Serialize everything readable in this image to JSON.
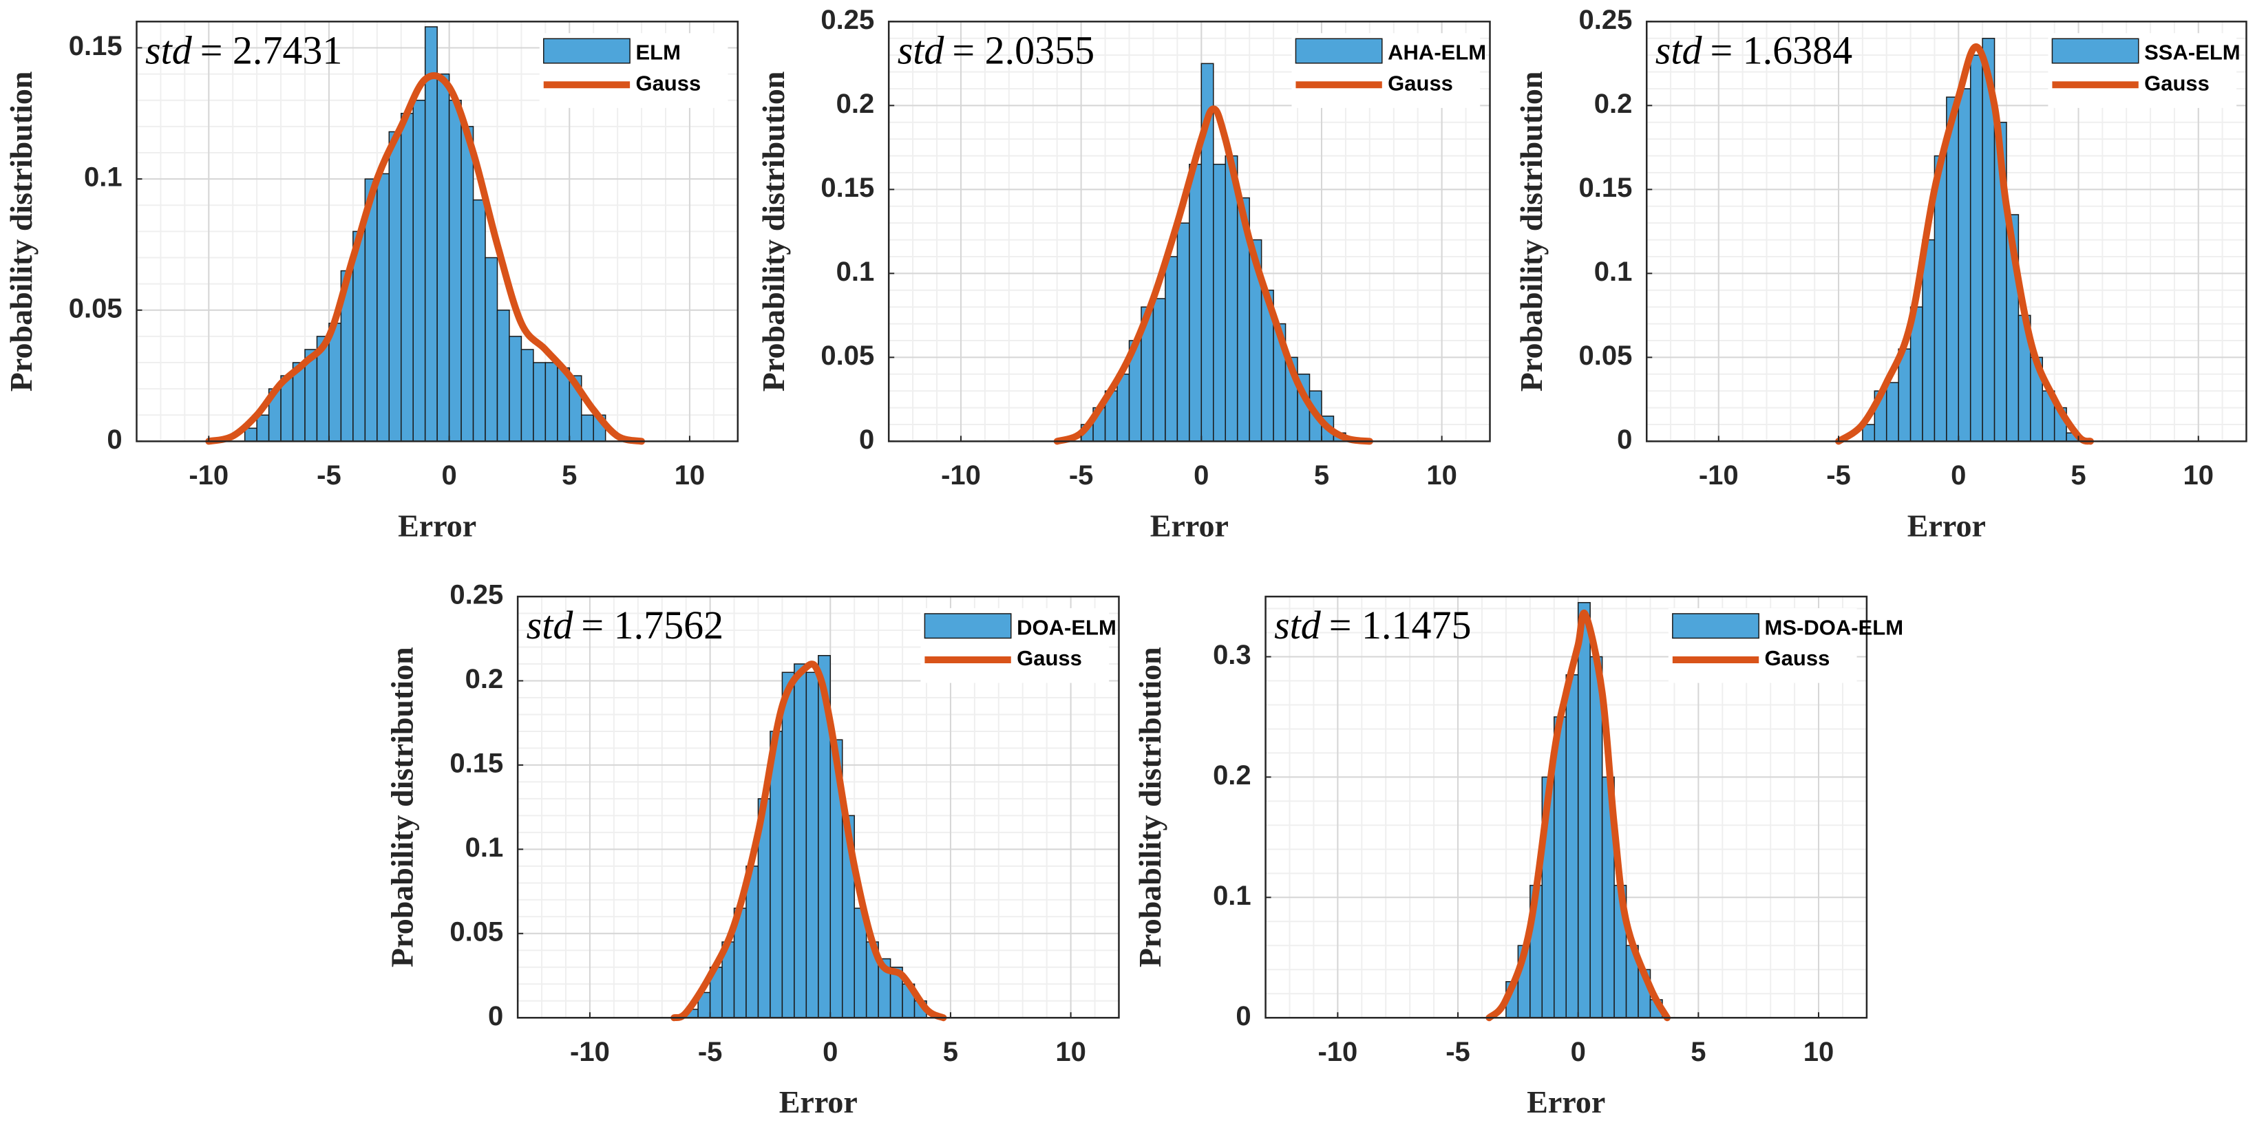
{
  "chart_data": [
    {
      "type": "histogram",
      "xlabel": "Error",
      "ylabel": "Probability distribution",
      "annotation": [
        "std",
        "= 2.7431"
      ],
      "bins": [
        -8.5,
        -8,
        -7.5,
        -7,
        -6.5,
        -6,
        -5.5,
        -5,
        -4.5,
        -4,
        -3.5,
        -3,
        -2.5,
        -2,
        -1.5,
        -1,
        -0.5,
        0,
        0.5,
        1,
        1.5,
        2,
        2.5,
        3,
        3.5,
        4,
        4.5,
        5,
        5.5,
        6,
        6.5
      ],
      "series": [
        {
          "name": "ELM",
          "color": "#4ea5da",
          "values": [
            0.005,
            0.01,
            0.02,
            0.025,
            0.03,
            0.035,
            0.04,
            0.045,
            0.065,
            0.08,
            0.1,
            0.102,
            0.118,
            0.125,
            0.13,
            0.158,
            0.14,
            0.13,
            0.12,
            0.092,
            0.07,
            0.05,
            0.04,
            0.035,
            0.03,
            0.03,
            0.028,
            0.025,
            0.01,
            0.01
          ]
        },
        {
          "name": "Gauss",
          "color": "#d95319",
          "x": [
            -10,
            -9,
            -8,
            -7,
            -6,
            -5,
            -4,
            -3,
            -2,
            -1,
            0,
            1,
            2,
            3,
            4,
            5,
            6,
            7,
            8
          ],
          "values": [
            0,
            0.002,
            0.01,
            0.022,
            0.03,
            0.04,
            0.07,
            0.1,
            0.12,
            0.138,
            0.135,
            0.11,
            0.075,
            0.045,
            0.035,
            0.025,
            0.012,
            0.002,
            0
          ]
        }
      ],
      "xlim": [
        -13,
        12
      ],
      "xticks": [
        -10,
        -5,
        0,
        5,
        10
      ],
      "ylim": [
        0,
        0.16
      ],
      "yticks": [
        0,
        0.05,
        0.1,
        0.15
      ],
      "grid": true,
      "legend": "top-right"
    },
    {
      "type": "histogram",
      "xlabel": "Error",
      "ylabel": "Probability distribution",
      "annotation": [
        "std",
        "= 2.0355"
      ],
      "bins": [
        -5,
        -4.5,
        -4,
        -3.5,
        -3,
        -2.5,
        -2,
        -1.5,
        -1,
        -0.5,
        0,
        0.5,
        1,
        1.5,
        2,
        2.5,
        3,
        3.5,
        4,
        4.5,
        5,
        5.5,
        6
      ],
      "series": [
        {
          "name": "AHA-ELM",
          "color": "#4ea5da",
          "values": [
            0.01,
            0.02,
            0.03,
            0.04,
            0.06,
            0.08,
            0.085,
            0.11,
            0.13,
            0.165,
            0.225,
            0.165,
            0.17,
            0.145,
            0.12,
            0.09,
            0.07,
            0.05,
            0.04,
            0.03,
            0.015,
            0.005
          ]
        },
        {
          "name": "Gauss",
          "color": "#d95319",
          "x": [
            -6,
            -5,
            -4,
            -3,
            -2,
            -1,
            0,
            0.5,
            1,
            2,
            3,
            4,
            5,
            6,
            7
          ],
          "values": [
            0,
            0.005,
            0.025,
            0.05,
            0.085,
            0.13,
            0.18,
            0.198,
            0.18,
            0.12,
            0.075,
            0.035,
            0.012,
            0.002,
            0
          ]
        }
      ],
      "xlim": [
        -13,
        12
      ],
      "xticks": [
        -10,
        -5,
        0,
        5,
        10
      ],
      "ylim": [
        0,
        0.25
      ],
      "yticks": [
        0,
        0.05,
        0.1,
        0.15,
        0.2,
        0.25
      ],
      "grid": true,
      "legend": "top-right"
    },
    {
      "type": "histogram",
      "xlabel": "Error",
      "ylabel": "Probability distribution",
      "annotation": [
        "std",
        "= 1.6384"
      ],
      "bins": [
        -4,
        -3.5,
        -3,
        -2.5,
        -2,
        -1.5,
        -1,
        -0.5,
        0,
        0.5,
        1,
        1.5,
        2,
        2.5,
        3,
        3.5,
        4,
        4.5,
        5
      ],
      "series": [
        {
          "name": "SSA-ELM",
          "color": "#4ea5da",
          "values": [
            0.01,
            0.03,
            0.035,
            0.055,
            0.08,
            0.12,
            0.17,
            0.205,
            0.21,
            0.23,
            0.24,
            0.19,
            0.135,
            0.075,
            0.05,
            0.03,
            0.02,
            0.005
          ]
        },
        {
          "name": "Gauss",
          "color": "#d95319",
          "x": [
            -5,
            -4,
            -3,
            -2,
            -1,
            0,
            0.75,
            1.5,
            2,
            3,
            4,
            5,
            5.5
          ],
          "values": [
            0,
            0.01,
            0.035,
            0.07,
            0.15,
            0.205,
            0.235,
            0.2,
            0.14,
            0.06,
            0.025,
            0.003,
            0
          ]
        }
      ],
      "xlim": [
        -13,
        12
      ],
      "xticks": [
        -10,
        -5,
        0,
        5,
        10
      ],
      "ylim": [
        0,
        0.25
      ],
      "yticks": [
        0,
        0.05,
        0.1,
        0.15,
        0.2,
        0.25
      ],
      "grid": true,
      "legend": "top-right"
    },
    {
      "type": "histogram",
      "xlabel": "Error",
      "ylabel": "Probability distribution",
      "annotation": [
        "std",
        "= 1.7562"
      ],
      "bins": [
        -6,
        -5.5,
        -5,
        -4.5,
        -4,
        -3.5,
        -3,
        -2.5,
        -2,
        -1.5,
        -1,
        -0.5,
        0,
        0.5,
        1,
        1.5,
        2,
        2.5,
        3,
        3.5,
        4
      ],
      "series": [
        {
          "name": "DOA-ELM",
          "color": "#4ea5da",
          "values": [
            0.005,
            0.015,
            0.03,
            0.045,
            0.065,
            0.09,
            0.13,
            0.17,
            0.205,
            0.21,
            0.205,
            0.215,
            0.165,
            0.12,
            0.065,
            0.045,
            0.035,
            0.03,
            0.02,
            0.01
          ]
        },
        {
          "name": "Gauss",
          "color": "#d95319",
          "x": [
            -6.5,
            -6,
            -5,
            -4,
            -3,
            -2,
            -1,
            -0.5,
            0,
            1,
            2,
            3,
            4,
            4.7
          ],
          "values": [
            0,
            0.003,
            0.025,
            0.055,
            0.11,
            0.185,
            0.208,
            0.205,
            0.175,
            0.09,
            0.035,
            0.025,
            0.005,
            0
          ]
        }
      ],
      "xlim": [
        -13,
        12
      ],
      "xticks": [
        -10,
        -5,
        0,
        5,
        10
      ],
      "ylim": [
        0,
        0.25
      ],
      "yticks": [
        0,
        0.05,
        0.1,
        0.15,
        0.2,
        0.25
      ],
      "grid": true,
      "legend": "top-right"
    },
    {
      "type": "histogram",
      "xlabel": "Error",
      "ylabel": "Probability distribution",
      "annotation": [
        "std",
        "= 1.1475"
      ],
      "bins": [
        -3,
        -2.5,
        -2,
        -1.5,
        -1,
        -0.5,
        0,
        0.5,
        1,
        1.5,
        2,
        2.5,
        3,
        3.5
      ],
      "series": [
        {
          "name": "MS-DOA-ELM",
          "color": "#4ea5da",
          "values": [
            0.03,
            0.06,
            0.11,
            0.2,
            0.25,
            0.285,
            0.345,
            0.3,
            0.2,
            0.11,
            0.06,
            0.04,
            0.015
          ]
        },
        {
          "name": "Gauss",
          "color": "#d95319",
          "x": [
            -3.7,
            -3,
            -2,
            -1,
            -0.5,
            0,
            0.3,
            1,
            1.5,
            2,
            3,
            3.7
          ],
          "values": [
            0,
            0.015,
            0.075,
            0.22,
            0.27,
            0.31,
            0.335,
            0.27,
            0.16,
            0.08,
            0.025,
            0
          ]
        }
      ],
      "xlim": [
        -13,
        12
      ],
      "xticks": [
        -10,
        -5,
        0,
        5,
        10
      ],
      "ylim": [
        0,
        0.35
      ],
      "yticks": [
        0,
        0.1,
        0.2,
        0.3
      ],
      "grid": true,
      "legend": "top-right"
    }
  ]
}
